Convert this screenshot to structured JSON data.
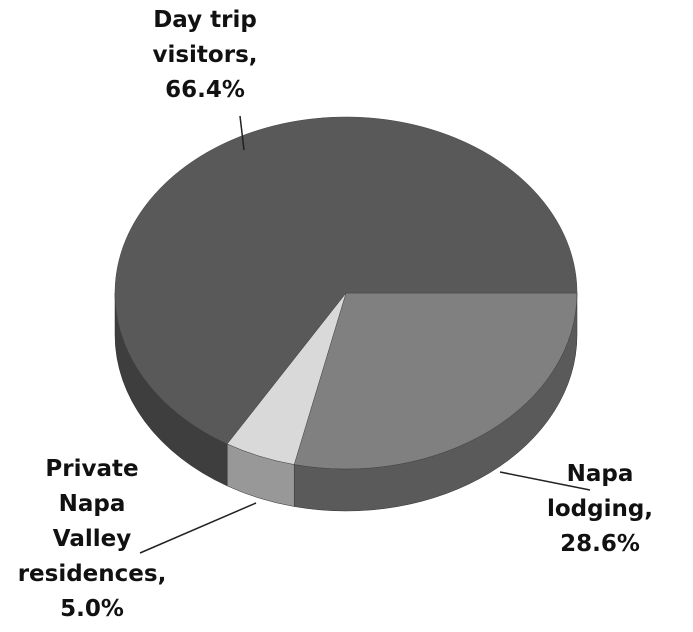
{
  "chart_data": {
    "type": "pie3d",
    "categories": [
      "Napa lodging,",
      "Private Napa Valley residences,",
      "Day trip visitors,"
    ],
    "values": [
      28.6,
      5.0,
      66.4
    ],
    "value_labels": [
      "28.6%",
      "5.0%",
      "66.4%"
    ],
    "colors": [
      "#808080",
      "#d9d9d9",
      "#595959"
    ]
  }
}
